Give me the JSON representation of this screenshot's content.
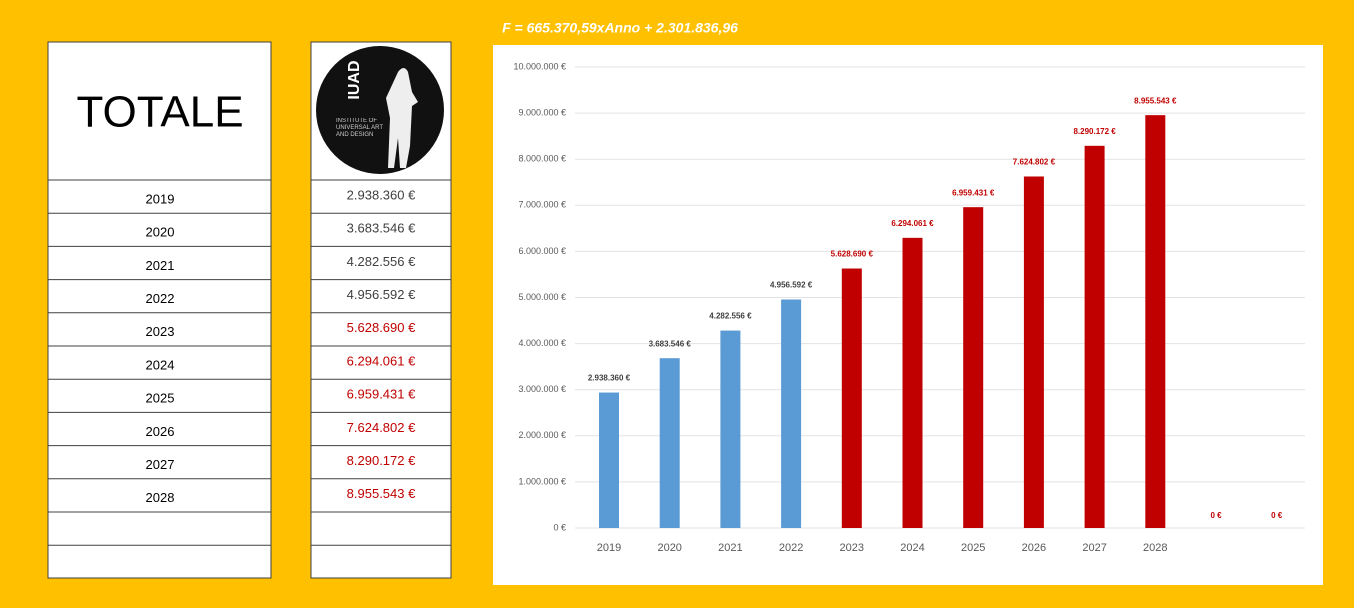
{
  "formula": "F = 665.370,59xAnno + 2.301.836,96",
  "table": {
    "header": "TOTALE",
    "logo_title": "IUAD",
    "logo_subtitle": "INSTITUTE OF UNIVERSAL ART AND DESIGN",
    "rows": [
      [
        "2019",
        "2.938.360 €"
      ],
      [
        "2020",
        "3.683.546 €"
      ],
      [
        "2021",
        "4.282.556 €"
      ],
      [
        "2022",
        "4.956.592 €"
      ],
      [
        "2023",
        "5.628.690 €"
      ],
      [
        "2024",
        "6.294.061 €"
      ],
      [
        "2025",
        "6.959.431 €"
      ],
      [
        "2026",
        "7.624.802 €"
      ],
      [
        "2027",
        "8.290.172 €"
      ],
      [
        "2028",
        "8.955.543 €"
      ]
    ]
  },
  "chart_data": {
    "type": "bar",
    "categories": [
      "2019",
      "2020",
      "2021",
      "2022",
      "2023",
      "2024",
      "2025",
      "2026",
      "2027",
      "2028",
      null,
      null
    ],
    "values": [
      2938360,
      3683546,
      4282556,
      4956592,
      5628690,
      6294061,
      6959431,
      7624802,
      8290172,
      8955543,
      0,
      0
    ],
    "value_labels": [
      "2.938.360 €",
      "3.683.546 €",
      "4.282.556 €",
      "4.956.592 €",
      "5.628.690 €",
      "6.294.061 €",
      "6.959.431 €",
      "7.624.802 €",
      "8.290.172 €",
      "8.955.543 €",
      "0 €",
      "0 €"
    ],
    "colors": [
      "#5b9bd5",
      "#5b9bd5",
      "#5b9bd5",
      "#5b9bd5",
      "#c00000",
      "#c00000",
      "#c00000",
      "#c00000",
      "#c00000",
      "#c00000",
      "#c00000",
      "#c00000"
    ],
    "value_label_colors": [
      "#404040",
      "#404040",
      "#404040",
      "#404040",
      "#c00000",
      "#c00000",
      "#c00000",
      "#c00000",
      "#c00000",
      "#c00000",
      "#c00000",
      "#c00000"
    ],
    "ylim": [
      0,
      10000000
    ],
    "yticks": [
      {
        "value": 0,
        "label": "0 €"
      },
      {
        "value": 1000000,
        "label": "1.000.000 €"
      },
      {
        "value": 2000000,
        "label": "2.000.000 €"
      },
      {
        "value": 3000000,
        "label": "3.000.000 €"
      },
      {
        "value": 4000000,
        "label": "4.000.000 €"
      },
      {
        "value": 5000000,
        "label": "5.000.000 €"
      },
      {
        "value": 6000000,
        "label": "6.000.000 €"
      },
      {
        "value": 7000000,
        "label": "7.000.000 €"
      },
      {
        "value": 8000000,
        "label": "8.000.000 €"
      },
      {
        "value": 9000000,
        "label": "9.000.000 €"
      },
      {
        "value": 10000000,
        "label": "10.000.000 €"
      }
    ],
    "grid": true
  }
}
